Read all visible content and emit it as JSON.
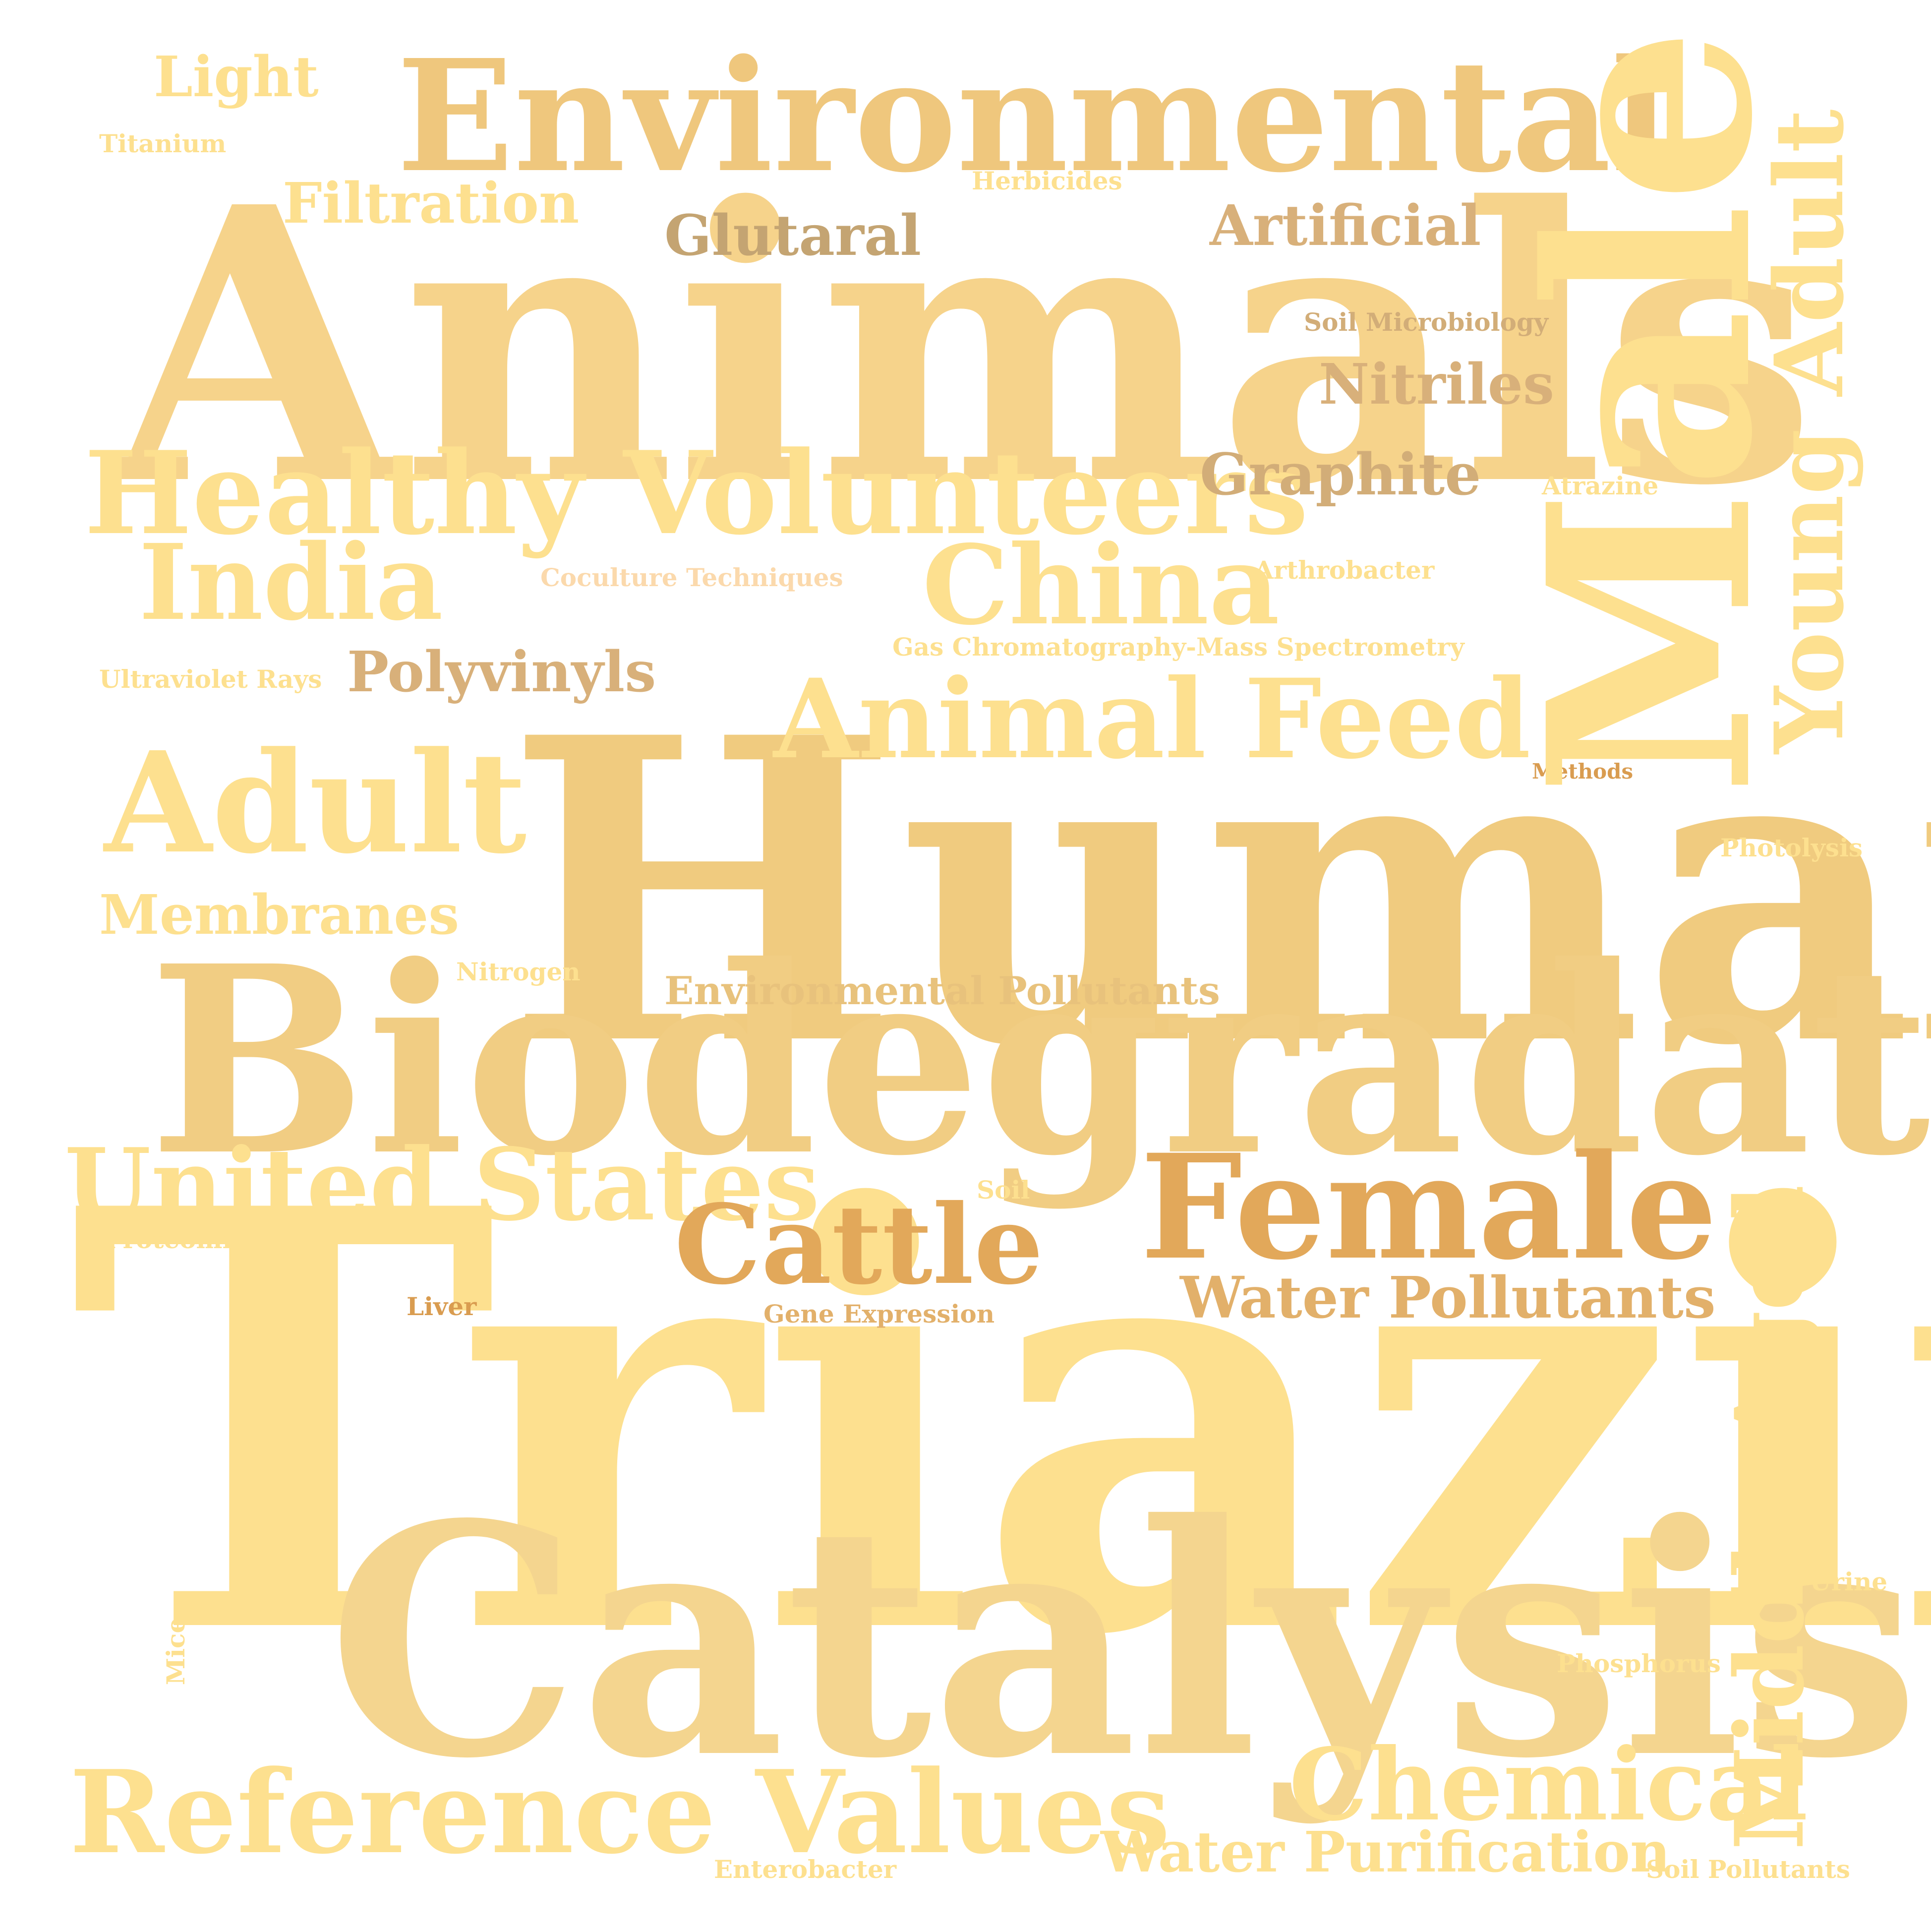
{
  "words": {
    "triazines": "Triazines",
    "humans": "Humans",
    "animals": "Animals",
    "male": "Male",
    "biodegradation": "Biodegradation",
    "catalysis": "Catalysis",
    "environmental": "Environmental",
    "healthy_volunteers": "Healthy Volunteers",
    "adult": "Adult",
    "female": "Female",
    "young_adult": "Young Adult",
    "middle_aged": "Middle Aged",
    "india": "India",
    "china": "China",
    "animal_feed": "Animal Feed",
    "united_states": "United States",
    "reference_values": "Reference Values",
    "chemical": "Chemical",
    "cattle": "Cattle",
    "membranes": "Membranes",
    "water_pollutants": "Water Pollutants",
    "water_purification": "Water Purification",
    "polyvinyls": "Polyvinyls",
    "graphite": "Graphite",
    "nitriles": "Nitriles",
    "artificial": "Artificial",
    "glutaral": "Glutaral",
    "filtration": "Filtration",
    "light": "Light",
    "environmental_pollutants": "Environmental Pollutants",
    "titanium": "Titanium",
    "herbicides": "Herbicides",
    "soil_microbiology": "Soil Microbiology",
    "atrazine": "Atrazine",
    "arthrobacter": "Arthrobacter",
    "coculture_techniques": "Coculture Techniques",
    "gcms": "Gas Chromatography-Mass Spectrometry",
    "ultraviolet_rays": "Ultraviolet Rays",
    "methods": "Methods",
    "photolysis": "Photolysis",
    "nitrogen": "Nitrogen",
    "soil": "Soil",
    "proteomics": "Proteomics",
    "liver": "Liver",
    "gene_expression": "Gene Expression",
    "urine": "Urine",
    "mice": "Mice",
    "phosphorus": "Phosphorus",
    "enterobacter": "Enterobacter",
    "soil_pollutants": "Soil Pollutants"
  },
  "colors": {
    "pale_yellow": "#fde08f",
    "light_gold": "#f6d48a",
    "gold": "#eec97d",
    "tan": "#d8b07a",
    "brown_gold": "#c4a472",
    "orange": "#e2a85a",
    "dark_orange": "#d99c50"
  }
}
